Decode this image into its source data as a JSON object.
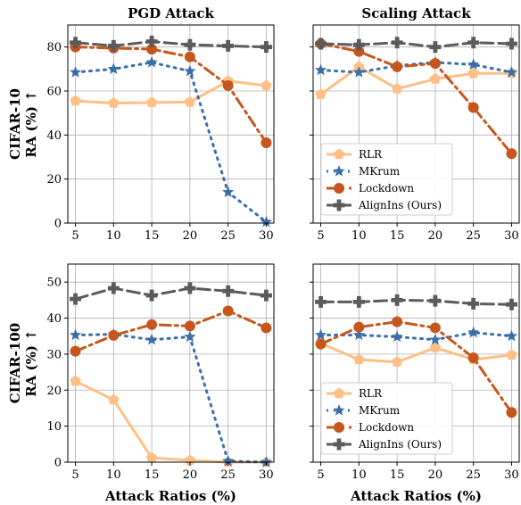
{
  "chart_data": [
    {
      "type": "line",
      "title": "PGD Attack",
      "row_label": [
        "CIFAR-10",
        "RA (%) ↑"
      ],
      "x": [
        5,
        10,
        15,
        20,
        25,
        30
      ],
      "xlabel": "",
      "ylim": [
        0,
        90
      ],
      "yticks": [
        0,
        20,
        40,
        60,
        80
      ],
      "grid": true,
      "legend": "none",
      "series": [
        {
          "name": "RLR",
          "values": [
            55.5,
            54.5,
            54.8,
            55,
            64.5,
            62.5
          ]
        },
        {
          "name": "MKrum",
          "values": [
            68.5,
            70,
            73,
            69,
            14,
            0.5
          ]
        },
        {
          "name": "Lockdown",
          "values": [
            80,
            79.5,
            79,
            75.5,
            62.5,
            36.5
          ]
        },
        {
          "name": "AlignIns (Ours)",
          "values": [
            82,
            80.5,
            82.5,
            81,
            80.5,
            80
          ]
        }
      ]
    },
    {
      "type": "line",
      "title": "Scaling Attack",
      "x": [
        5,
        10,
        15,
        20,
        25,
        30
      ],
      "xlabel": "",
      "ylim": [
        0,
        90
      ],
      "yticks": [
        0,
        20,
        40,
        60,
        80
      ],
      "grid": true,
      "legend": "lower-left",
      "series": [
        {
          "name": "RLR",
          "values": [
            58.5,
            71,
            61,
            65.5,
            68,
            68
          ]
        },
        {
          "name": "MKrum",
          "values": [
            69.5,
            68.5,
            71.5,
            73,
            72,
            68.5
          ]
        },
        {
          "name": "Lockdown",
          "values": [
            81.5,
            78,
            71,
            72.5,
            52.5,
            31.5
          ]
        },
        {
          "name": "AlignIns (Ours)",
          "values": [
            81.5,
            81,
            82,
            80,
            82,
            81.5
          ]
        }
      ]
    },
    {
      "type": "line",
      "title": "",
      "row_label": [
        "CIFAR-100",
        "RA (%) ↑"
      ],
      "x": [
        5,
        10,
        15,
        20,
        25,
        30
      ],
      "xlabel": "Attack Ratios (%)",
      "ylim": [
        0,
        55
      ],
      "yticks": [
        0,
        10,
        20,
        30,
        40,
        50
      ],
      "grid": true,
      "legend": "none",
      "series": [
        {
          "name": "RLR",
          "values": [
            22.5,
            17.3,
            1.2,
            0.5,
            0,
            0
          ]
        },
        {
          "name": "MKrum",
          "values": [
            35.3,
            35.5,
            34,
            34.8,
            0.3,
            0
          ]
        },
        {
          "name": "Lockdown",
          "values": [
            30.8,
            35.2,
            38.2,
            37.8,
            42,
            37.3
          ]
        },
        {
          "name": "AlignIns (Ours)",
          "values": [
            45.3,
            48.3,
            46.3,
            48.3,
            47.5,
            46.3
          ]
        }
      ]
    },
    {
      "type": "line",
      "title": "",
      "x": [
        5,
        10,
        15,
        20,
        25,
        30
      ],
      "xlabel": "Attack Ratios (%)",
      "ylim": [
        0,
        55
      ],
      "yticks": [
        0,
        10,
        20,
        30,
        40,
        50
      ],
      "grid": true,
      "legend": "lower-left",
      "series": [
        {
          "name": "RLR",
          "values": [
            33,
            28.5,
            27.8,
            31.8,
            28.5,
            29.8
          ]
        },
        {
          "name": "MKrum",
          "values": [
            35.3,
            35.3,
            34.8,
            34,
            36,
            35
          ]
        },
        {
          "name": "Lockdown",
          "values": [
            32.8,
            37.5,
            39,
            37.3,
            29,
            13.8
          ]
        },
        {
          "name": "AlignIns (Ours)",
          "values": [
            44.5,
            44.5,
            45,
            44.8,
            44,
            43.8
          ]
        }
      ]
    }
  ],
  "series_style": [
    {
      "color": "#FFBF86",
      "marker": "pentagon",
      "dash": "none"
    },
    {
      "color": "#3A6EA9",
      "marker": "star",
      "dash": "dot"
    },
    {
      "color": "#C6561D",
      "marker": "circle",
      "dash": "dashdot"
    },
    {
      "color": "#5B5B5B",
      "marker": "plus",
      "dash": "dash"
    }
  ]
}
